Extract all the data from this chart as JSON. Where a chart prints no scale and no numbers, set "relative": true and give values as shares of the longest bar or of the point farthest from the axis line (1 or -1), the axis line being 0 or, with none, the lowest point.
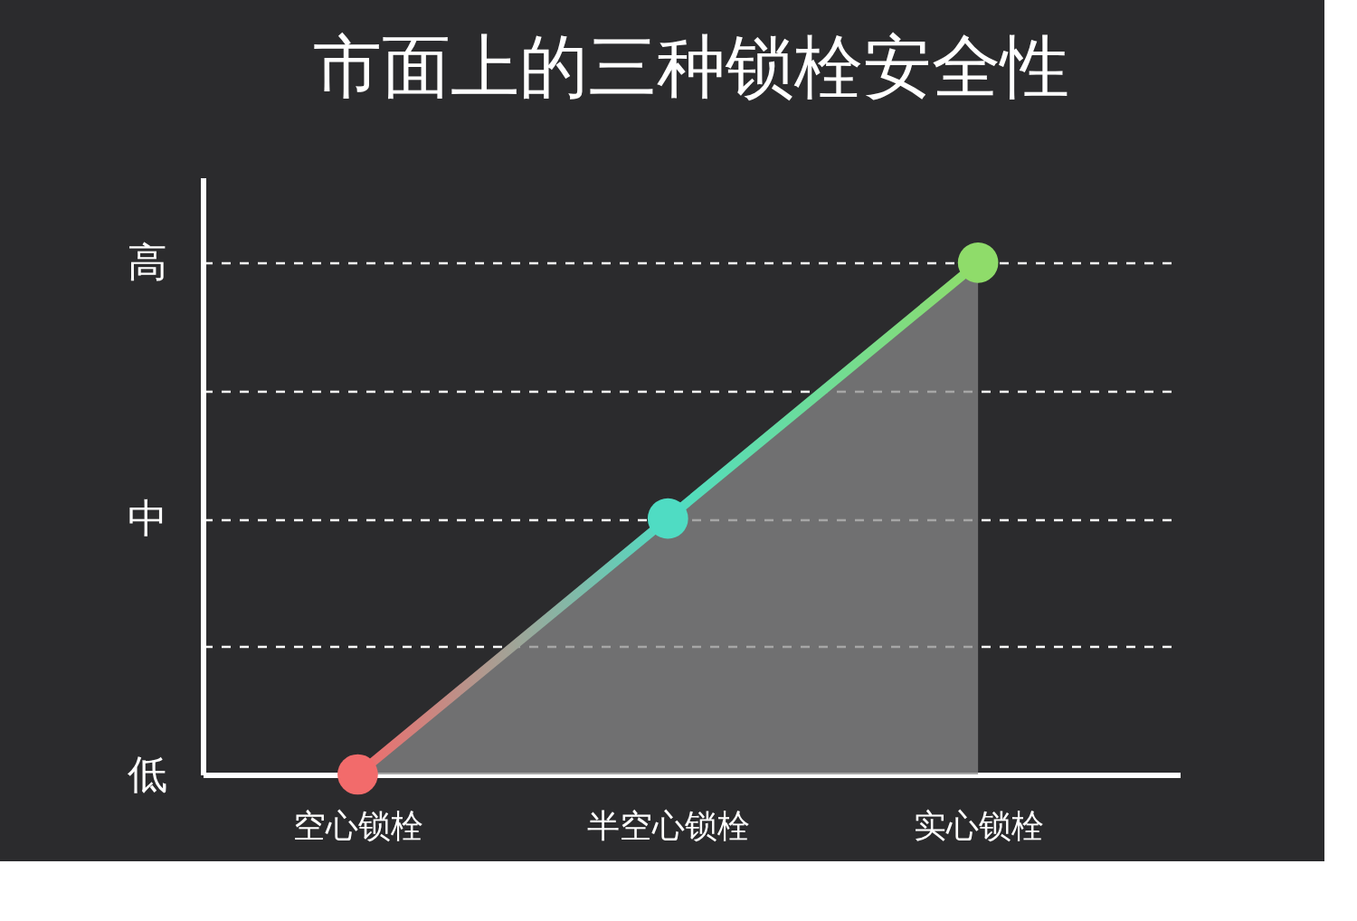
{
  "chart_data": {
    "type": "area",
    "title": "市面上的三种锁栓安全性",
    "categories": [
      "空心锁栓",
      "半空心锁栓",
      "实心锁栓"
    ],
    "values": [
      0,
      0.5,
      1
    ],
    "colors": [
      "#f26b6b",
      "#4fdcc3",
      "#8fdc6a"
    ],
    "relative": true,
    "y_categories": [
      "高",
      "中",
      "低"
    ],
    "grid": "y",
    "line_style": "solid",
    "marker": "circle"
  }
}
